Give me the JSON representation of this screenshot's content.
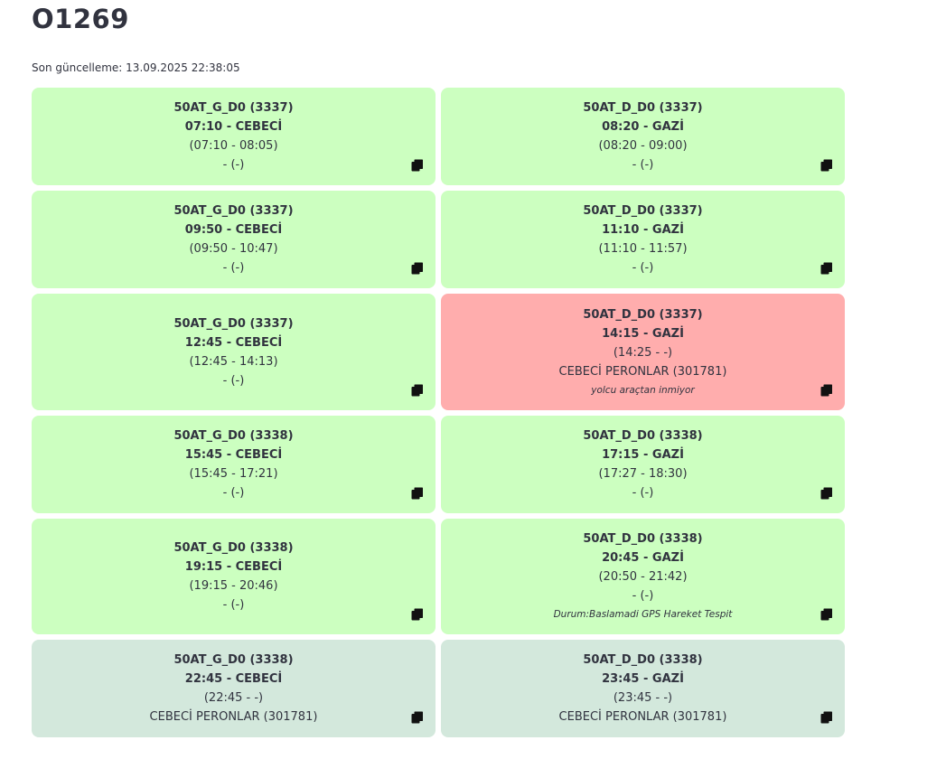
{
  "page": {
    "title": "O1269",
    "updated": "Son güncelleme: 13.09.2025 22:38:05"
  },
  "rows": [
    {
      "height": 108,
      "gap": 6,
      "cards": [
        {
          "state": "green",
          "route": "50AT_G_D0 (3337)",
          "departure": "07:10 - CEBECİ",
          "times": "(07:10 - 08:05)",
          "stop": "- (-)",
          "note": ""
        },
        {
          "state": "green",
          "route": "50AT_D_D0 (3337)",
          "departure": "08:20 - GAZİ",
          "times": "(08:20 - 09:00)",
          "stop": "- (-)",
          "note": ""
        }
      ]
    },
    {
      "height": 108,
      "gap": 6,
      "cards": [
        {
          "state": "green",
          "route": "50AT_G_D0 (3337)",
          "departure": "09:50 - CEBECİ",
          "times": "(09:50 - 10:47)",
          "stop": "- (-)",
          "note": ""
        },
        {
          "state": "green",
          "route": "50AT_D_D0 (3337)",
          "departure": "11:10 - GAZİ",
          "times": "(11:10 - 11:57)",
          "stop": "- (-)",
          "note": ""
        }
      ]
    },
    {
      "height": 129,
      "gap": 6,
      "cards": [
        {
          "state": "green",
          "route": "50AT_G_D0 (3337)",
          "departure": "12:45 - CEBECİ",
          "times": "(12:45 - 14:13)",
          "stop": "- (-)",
          "note": ""
        },
        {
          "state": "red",
          "route": "50AT_D_D0 (3337)",
          "departure": "14:15 - GAZİ",
          "times": "(14:25 - -)",
          "stop": "CEBECİ PERONLAR (301781)",
          "note": "yolcu araçtan inmiyor"
        }
      ]
    },
    {
      "height": 108,
      "gap": 6,
      "cards": [
        {
          "state": "green",
          "route": "50AT_G_D0 (3338)",
          "departure": "15:45 - CEBECİ",
          "times": "(15:45 - 17:21)",
          "stop": "- (-)",
          "note": ""
        },
        {
          "state": "green",
          "route": "50AT_D_D0 (3338)",
          "departure": "17:15 - GAZİ",
          "times": "(17:27 - 18:30)",
          "stop": "- (-)",
          "note": ""
        }
      ]
    },
    {
      "height": 128,
      "gap": 6,
      "cards": [
        {
          "state": "green",
          "route": "50AT_G_D0 (3338)",
          "departure": "19:15 - CEBECİ",
          "times": "(19:15 - 20:46)",
          "stop": "- (-)",
          "note": ""
        },
        {
          "state": "green",
          "route": "50AT_D_D0 (3338)",
          "departure": "20:45 - GAZİ",
          "times": "(20:50 - 21:42)",
          "stop": "- (-)",
          "note": "Durum:Baslamadi GPS Hareket Tespit"
        }
      ]
    },
    {
      "height": 108,
      "gap": 0,
      "cards": [
        {
          "state": "grey",
          "route": "50AT_G_D0 (3338)",
          "departure": "22:45 - CEBECİ",
          "times": "(22:45 - -)",
          "stop": "CEBECİ PERONLAR (301781)",
          "note": ""
        },
        {
          "state": "grey",
          "route": "50AT_D_D0 (3338)",
          "departure": "23:45 - GAZİ",
          "times": "(23:45 - -)",
          "stop": "CEBECİ PERONLAR (301781)",
          "note": ""
        }
      ]
    }
  ],
  "icons": {
    "copy": "copy-icon"
  }
}
